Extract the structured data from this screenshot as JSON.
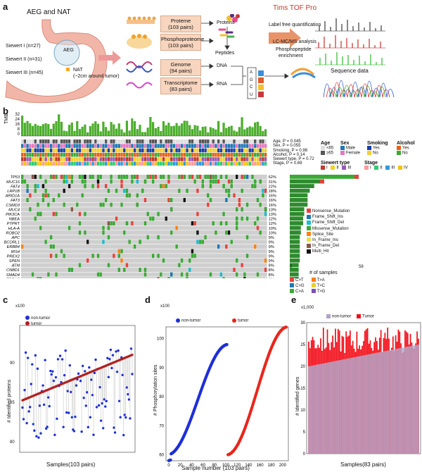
{
  "panels": {
    "a": "a",
    "b": "b",
    "c": "c",
    "d": "d",
    "e": "e"
  },
  "panel_a": {
    "title": "AEG and NAT",
    "siewert": [
      "Siewert I (n=27)",
      "Siewert II (n=31)",
      "Siewert III (n=45)"
    ],
    "aeg": "AEG",
    "nat": "NAT",
    "nat_note": "(~2cm around tumor)",
    "boxes": [
      {
        "name": "Proteme",
        "n": "(103 pairs)"
      },
      {
        "name": "Phosphoproteome",
        "n": "(103 pairs)"
      },
      {
        "name": "Genome",
        "n": "(94 pairs)"
      },
      {
        "name": "Transcriptome",
        "n": "(83 pairs)"
      }
    ],
    "outputs": [
      "Proteins",
      "Peptides",
      "DNA",
      "RNA"
    ],
    "tims": "Tims TOF Pro",
    "lfq": "Label free quantification",
    "lcms": "LC-MC/MS analysis",
    "phospho_enrich_1": "Phosphopeptide",
    "phospho_enrich_2": "enrichment",
    "seq": "Sequence data",
    "bases": [
      "A",
      "G",
      "C",
      "U"
    ]
  },
  "panel_b": {
    "tmb_label": "TMB",
    "tmb_ticks": [
      "32",
      "24",
      "16",
      "8",
      "0"
    ],
    "clinical": [
      "Age, P = 0.045",
      "Sex, P = 0.055",
      "Smoking, P = 0.98",
      "Alcohol, P = 0.14",
      "Siewert type, P = 0.72",
      "Stage, P = 0.69"
    ],
    "legend_age": {
      "title": "Age",
      "items": [
        "<65",
        "≥65"
      ]
    },
    "legend_sex": {
      "title": "Sex",
      "items": [
        "Male",
        "Female"
      ]
    },
    "legend_smoking": {
      "title": "Smoking",
      "items": [
        "Yes",
        "No"
      ]
    },
    "legend_alcohol": {
      "title": "Alcohol",
      "items": [
        "Yes",
        "No"
      ]
    },
    "legend_siewert": {
      "title": "Siewert type",
      "items": [
        "I",
        "II",
        "III"
      ]
    },
    "legend_stage": {
      "title": "Stage",
      "items": [
        "I",
        "II",
        "III",
        "IV"
      ]
    },
    "genes": [
      "TP53",
      "MUC16",
      "FAT4",
      "LRP1B",
      "ARID1A",
      "FAT3",
      "CSMD3",
      "MUC4",
      "PIK3CA",
      "NBEA",
      "PTPRT",
      "HLA-A",
      "ROBO2",
      "APC",
      "BCORL1",
      "ERBB4",
      "IRS4",
      "PREX2",
      "SPEN",
      "ATM",
      "CNBD1",
      "SMAD4",
      "TRRAP",
      "ANK1",
      "BRD4",
      "CTNNA2",
      "EPHA7",
      "GNAS",
      "KMT2D",
      "KRAS"
    ],
    "pcts": [
      "62%",
      "31%",
      "22%",
      "18%",
      "16%",
      "16%",
      "16%",
      "13%",
      "13%",
      "12%",
      "12%",
      "10%",
      "10%",
      "9%",
      "9%",
      "9%",
      "9%",
      "9%",
      "9%",
      "8%",
      "8%",
      "8%",
      "8%",
      "6%",
      "6%",
      "6%",
      "6%",
      "6%",
      "6%",
      "6%"
    ],
    "mut_legend": [
      "Nonsense_Mutation",
      "Frame_Shift_Ins",
      "Frame_Shift_Del",
      "Missense_Mutation",
      "Splice_Site",
      "In_Frame_Ins",
      "In_Frame_Del",
      "Multi_Hit"
    ],
    "mut_colors": [
      "#e8413c",
      "#1f77b4",
      "#17becf",
      "#3aaa35",
      "#ff7f0e",
      "#e7e055",
      "#8c564b",
      "#111111"
    ],
    "samples_axis": {
      "min": "0",
      "max": "58",
      "label": "# of samples"
    },
    "snv_legend": [
      "C>T",
      "C>G",
      "C>A",
      "T>A",
      "T>C",
      "T>G"
    ],
    "snv_colors": [
      "#e8413c",
      "#1f77b4",
      "#3aaa35",
      "#ff7f0e",
      "#e7d32a",
      "#7b52ab"
    ]
  },
  "panel_c": {
    "x100": "x100",
    "ylabel": "# Identified proteins",
    "xlabel": "Samples(103 pairs)",
    "yticks": [
      "90",
      "85",
      "80"
    ],
    "legend": [
      "non-tumor",
      "tumor"
    ]
  },
  "panel_d": {
    "x100": "x100",
    "ylabel": "# Phosphorylation sites",
    "xlabel": "Sample number (103 pairs)",
    "yticks": [
      "100",
      "90",
      "80",
      "70",
      "60"
    ],
    "xticks": [
      "0",
      "20",
      "40",
      "60",
      "80",
      "100",
      "120",
      "140",
      "160",
      "180",
      "200"
    ],
    "legend": [
      "non-tumor",
      "tumor"
    ]
  },
  "panel_e": {
    "x1000": "x1,000",
    "ylabel": "# Identified genes",
    "xlabel": "Samples(83 pairs)",
    "yticks": [
      "30",
      "25",
      "20",
      "15",
      "10",
      "5",
      "0"
    ],
    "legend": [
      "non-tumor",
      "Tumor"
    ]
  },
  "chart_data": [
    {
      "type": "scatter",
      "title": "Identified proteins",
      "xlabel": "Samples(103 pairs)",
      "ylabel": "# Identified proteins (x100)",
      "ylim": [
        78,
        96
      ],
      "series": [
        {
          "name": "non-tumor",
          "trend": "scattered 80-94"
        },
        {
          "name": "tumor",
          "range": [
            86,
            93
          ],
          "order": "ascending"
        }
      ]
    },
    {
      "type": "scatter",
      "title": "Phosphorylation sites",
      "xlabel": "Sample number (103 pairs)",
      "ylabel": "# Phosphorylation sites (x100)",
      "xlim": [
        0,
        210
      ],
      "ylim": [
        58,
        104
      ],
      "series": [
        {
          "name": "non-tumor",
          "x_range": [
            0,
            103
          ],
          "y_range": [
            60,
            98
          ]
        },
        {
          "name": "tumor",
          "x_range": [
            104,
            206
          ],
          "y_range": [
            60,
            104
          ]
        }
      ]
    },
    {
      "type": "bar",
      "title": "Identified genes",
      "xlabel": "Samples(83 pairs)",
      "ylabel": "# Identified genes (x1,000)",
      "ylim": [
        0,
        30
      ],
      "series": [
        {
          "name": "non-tumor",
          "range": [
            20,
            25
          ],
          "order": "ascending"
        },
        {
          "name": "Tumor",
          "range": [
            23,
            29
          ]
        }
      ]
    }
  ]
}
